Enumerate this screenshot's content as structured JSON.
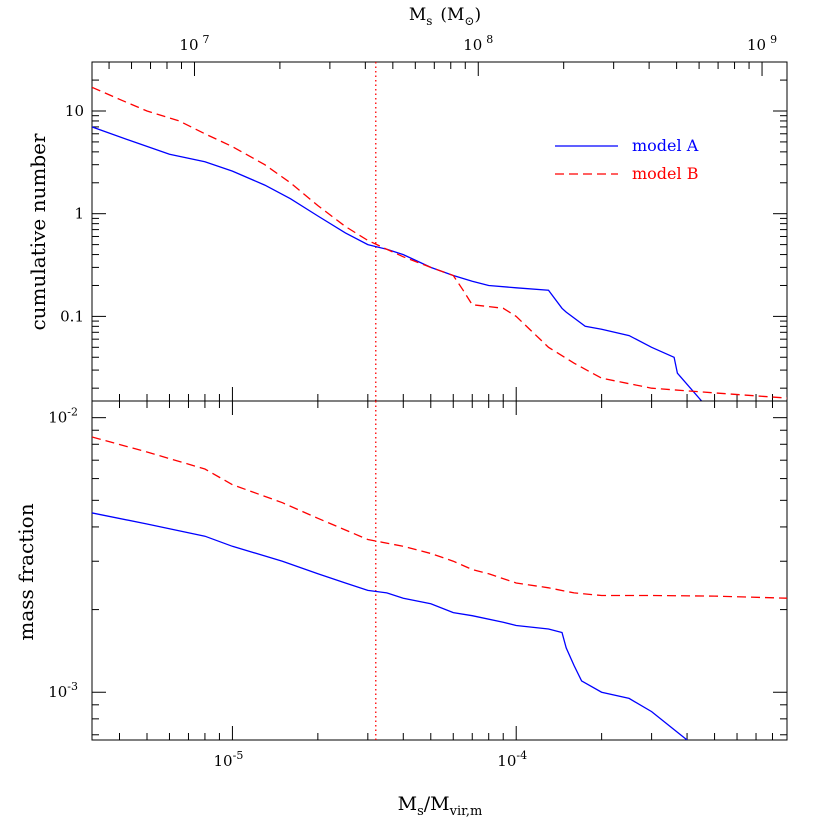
{
  "chart_data": [
    {
      "type": "line",
      "panel": "top",
      "ylabel": "cumulative number",
      "yscale": "log",
      "xscale": "log",
      "xlim": [
        3.2e-06,
        0.0009
      ],
      "ylim": [
        0.015,
        30
      ],
      "ytick_labels": [
        {
          "value": 0.1,
          "label": "0.1"
        },
        {
          "value": 1,
          "label": "1"
        },
        {
          "value": 10,
          "label": "10"
        }
      ],
      "top_axis": {
        "label_main": "M",
        "label_sub": "s",
        "label_unit": "(M",
        "label_unit_close": ")",
        "ticks": [
          {
            "xvalue": 7.35e-06,
            "base": "10",
            "exp": "7"
          },
          {
            "xvalue": 7.35e-05,
            "base": "10",
            "exp": "8"
          },
          {
            "xvalue": 0.000735,
            "base": "10",
            "exp": "9"
          }
        ]
      },
      "vline_x": 3.2e-05,
      "legend": {
        "placement": "top-right",
        "entries": [
          {
            "label": "model A",
            "color": "#0000ff",
            "style": "solid"
          },
          {
            "label": "model B",
            "color": "#ff0000",
            "style": "dashed"
          }
        ]
      },
      "series": [
        {
          "name": "model A",
          "color": "#0000ff",
          "style": "solid",
          "x": [
            3.2e-06,
            4.5e-06,
            6e-06,
            8e-06,
            1e-05,
            1.3e-05,
            1.6e-05,
            2e-05,
            2.5e-05,
            3e-05,
            3.5e-05,
            4e-05,
            5e-05,
            6e-05,
            7e-05,
            8e-05,
            0.0001,
            0.00013,
            0.000145,
            0.00015,
            0.000175,
            0.0002,
            0.00025,
            0.0003,
            0.00036,
            0.00037,
            0.00045
          ],
          "y": [
            7.0,
            5.0,
            3.8,
            3.2,
            2.6,
            1.9,
            1.4,
            0.95,
            0.65,
            0.5,
            0.45,
            0.4,
            0.3,
            0.25,
            0.22,
            0.2,
            0.19,
            0.18,
            0.12,
            0.11,
            0.08,
            0.075,
            0.065,
            0.05,
            0.04,
            0.028,
            0.015
          ]
        },
        {
          "name": "model B",
          "color": "#ff0000",
          "style": "dashed",
          "x": [
            3.2e-06,
            4e-06,
            5e-06,
            6.5e-06,
            8e-06,
            1e-05,
            1.3e-05,
            1.6e-05,
            2e-05,
            2.5e-05,
            3e-05,
            3.5e-05,
            4e-05,
            5e-05,
            6e-05,
            6.5e-05,
            7e-05,
            9e-05,
            0.0001,
            0.00013,
            0.00016,
            0.0002,
            0.0003,
            0.0005,
            0.0009
          ],
          "y": [
            17.0,
            13.0,
            10.0,
            8.0,
            6.0,
            4.5,
            3.0,
            2.0,
            1.2,
            0.75,
            0.55,
            0.45,
            0.38,
            0.3,
            0.25,
            0.18,
            0.13,
            0.12,
            0.1,
            0.05,
            0.035,
            0.025,
            0.02,
            0.018,
            0.016
          ]
        }
      ]
    },
    {
      "type": "line",
      "panel": "bottom",
      "ylabel": "mass fraction",
      "yscale": "log",
      "xscale": "log",
      "xlim": [
        3.2e-06,
        0.0009
      ],
      "ylim": [
        0.00067,
        0.0115
      ],
      "xlabel_main": "M",
      "xlabel_sub1": "s",
      "xlabel_mid": "/M",
      "xlabel_sub2": "vir,m",
      "ytick_labels": [
        {
          "value": 0.001,
          "base": "10",
          "exp": "-3"
        },
        {
          "value": 0.01,
          "base": "10",
          "exp": "-2"
        }
      ],
      "xtick_labels": [
        {
          "value": 1e-05,
          "base": "10",
          "exp": "-5"
        },
        {
          "value": 0.0001,
          "base": "10",
          "exp": "-4"
        }
      ],
      "vline_x": 3.2e-05,
      "series": [
        {
          "name": "model A",
          "color": "#0000ff",
          "style": "solid",
          "x": [
            3.2e-06,
            5e-06,
            8e-06,
            1e-05,
            1.5e-05,
            2e-05,
            2.5e-05,
            3e-05,
            3.5e-05,
            4e-05,
            5e-05,
            6e-05,
            7e-05,
            9e-05,
            0.0001,
            0.00013,
            0.000145,
            0.00015,
            0.00016,
            0.00017,
            0.0002,
            0.00025,
            0.0003,
            0.0004
          ],
          "y": [
            0.0045,
            0.0041,
            0.0037,
            0.0034,
            0.003,
            0.0027,
            0.0025,
            0.00235,
            0.0023,
            0.0022,
            0.0021,
            0.00195,
            0.0019,
            0.0018,
            0.00175,
            0.0017,
            0.00165,
            0.00145,
            0.00125,
            0.0011,
            0.001,
            0.00095,
            0.00085,
            0.00067
          ]
        },
        {
          "name": "model B",
          "color": "#ff0000",
          "style": "dashed",
          "x": [
            3.2e-06,
            5e-06,
            8e-06,
            1e-05,
            1.5e-05,
            2e-05,
            2.5e-05,
            3e-05,
            4e-05,
            5e-05,
            6e-05,
            7e-05,
            8e-05,
            0.0001,
            0.00013,
            0.00016,
            0.0002,
            0.0003,
            0.0005,
            0.0009
          ],
          "y": [
            0.0085,
            0.0075,
            0.0065,
            0.0057,
            0.0049,
            0.0043,
            0.0039,
            0.0036,
            0.0034,
            0.0032,
            0.003,
            0.0028,
            0.0027,
            0.0025,
            0.0024,
            0.0023,
            0.00225,
            0.00225,
            0.00224,
            0.0022
          ]
        }
      ]
    }
  ]
}
